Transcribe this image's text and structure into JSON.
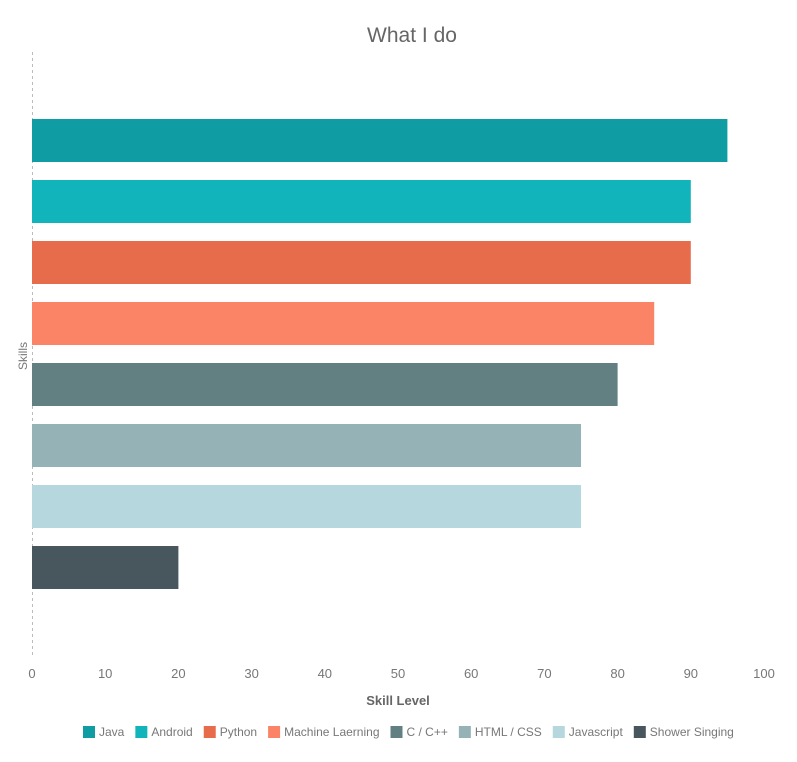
{
  "chart_data": {
    "type": "bar",
    "orientation": "horizontal",
    "title": "What I do",
    "xlabel": "Skill Level",
    "ylabel": "Skills",
    "xlim": [
      0,
      100
    ],
    "xticks": [
      0,
      10,
      20,
      30,
      40,
      50,
      60,
      70,
      80,
      90,
      100
    ],
    "legend_position": "bottom",
    "grid": false,
    "series": [
      {
        "name": "Java",
        "value": 95,
        "color": "#0f9ca3"
      },
      {
        "name": "Android",
        "value": 90,
        "color": "#11b4bb"
      },
      {
        "name": "Python",
        "value": 90,
        "color": "#e76c4c"
      },
      {
        "name": "Machine Laerning",
        "value": 85,
        "color": "#fb8366"
      },
      {
        "name": "C / C++",
        "value": 80,
        "color": "#627f82"
      },
      {
        "name": "HTML / CSS",
        "value": 75,
        "color": "#95b3b6"
      },
      {
        "name": "Javascript",
        "value": 75,
        "color": "#b6d7dd"
      },
      {
        "name": "Shower Singing",
        "value": 20,
        "color": "#48575d"
      }
    ]
  }
}
